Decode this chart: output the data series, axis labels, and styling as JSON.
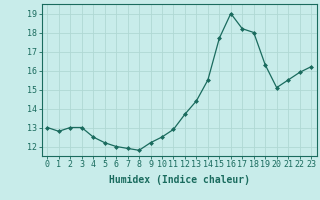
{
  "x": [
    0,
    1,
    2,
    3,
    4,
    5,
    6,
    7,
    8,
    9,
    10,
    11,
    12,
    13,
    14,
    15,
    16,
    17,
    18,
    19,
    20,
    21,
    22,
    23
  ],
  "y": [
    13.0,
    12.8,
    13.0,
    13.0,
    12.5,
    12.2,
    12.0,
    11.9,
    11.8,
    12.2,
    12.5,
    12.9,
    13.7,
    14.4,
    15.5,
    17.7,
    19.0,
    18.2,
    18.0,
    16.3,
    15.1,
    15.5,
    15.9,
    16.2
  ],
  "line_color": "#1a6b5e",
  "marker": "D",
  "marker_size": 2,
  "bg_color": "#c8ecea",
  "grid_color": "#b0d8d4",
  "xlabel": "Humidex (Indice chaleur)",
  "xlim": [
    -0.5,
    23.5
  ],
  "ylim": [
    11.5,
    19.5
  ],
  "yticks": [
    12,
    13,
    14,
    15,
    16,
    17,
    18,
    19
  ],
  "xticks": [
    0,
    1,
    2,
    3,
    4,
    5,
    6,
    7,
    8,
    9,
    10,
    11,
    12,
    13,
    14,
    15,
    16,
    17,
    18,
    19,
    20,
    21,
    22,
    23
  ],
  "tick_label_fontsize": 6,
  "xlabel_fontsize": 7,
  "tick_color": "#1a6b5e",
  "axis_color": "#1a6b5e"
}
